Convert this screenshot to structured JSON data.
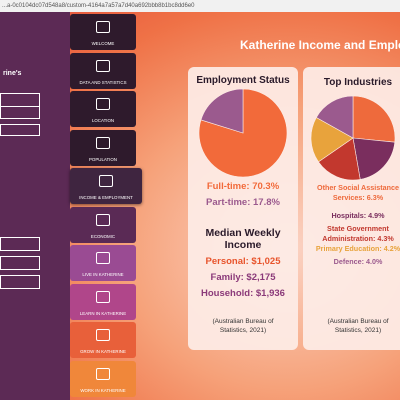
{
  "browser": {
    "url": "...a-0c0104dc07d548a8/custom-4164a7a57a7d40a692bbb8b1bc8dd6e0"
  },
  "sidebar": {
    "heading": "rine's"
  },
  "nav": [
    {
      "label": "WELCOME",
      "color": "#2e1a2c"
    },
    {
      "label": "DATA AND STATISTICS",
      "color": "#2e1a2c"
    },
    {
      "label": "LOCATION",
      "color": "#2e1a2c"
    },
    {
      "label": "POPULATION",
      "color": "#2e1a2c"
    },
    {
      "label": "INCOME & EMPLOYMENT",
      "color": "#3f2540",
      "selected": true
    },
    {
      "label": "ECONOMIC",
      "color": "#5a2a55"
    },
    {
      "label": "LIVE IN KATHERINE",
      "color": "#9a4b93"
    },
    {
      "label": "LEARN IN KATHERINE",
      "color": "#b0468a"
    },
    {
      "label": "GROW IN KATHERINE",
      "color": "#e8603a"
    },
    {
      "label": "WORK IN KATHERINE",
      "color": "#f0873a"
    }
  ],
  "title": "Katherine Income and Employment",
  "cards": [
    {
      "title": "Employment Status",
      "chart": {
        "type": "pie",
        "slices": [
          {
            "label": "Full-time: 70.3%",
            "value": 70.3,
            "color": "#f26a3a"
          },
          {
            "label": "Part-time: 17.8%",
            "value": 17.8,
            "color": "#9b5a8e"
          }
        ]
      },
      "section_title": "Median Weekly Income",
      "lines": [
        {
          "text": "Personal: $1,025",
          "color": "#e8542c"
        },
        {
          "text": "Family: $2,175",
          "color": "#8b3a7a"
        },
        {
          "text": "Household: $1,936",
          "color": "#8b3a7a"
        }
      ],
      "source": "(Australian Bureau of Statistics, 2021)"
    },
    {
      "title": "Top Industries",
      "chart": {
        "type": "pie",
        "slices": [
          {
            "label": "Other Social Assistance Services: 6.3%",
            "value": 6.3,
            "color": "#ee6a3c"
          },
          {
            "label": "Hospitals: 4.9%",
            "value": 4.9,
            "color": "#7a2e5e"
          },
          {
            "label": "State Government Administration: 4.3%",
            "value": 4.3,
            "color": "#c2382e"
          },
          {
            "label": "Primary Education: 4.2%",
            "value": 4.2,
            "color": "#e8a33c"
          },
          {
            "label": "Defence: 4.0%",
            "value": 4.0,
            "color": "#9b5a8e"
          }
        ]
      },
      "source": "(Australian Bureau of Statistics, 2021)"
    }
  ]
}
